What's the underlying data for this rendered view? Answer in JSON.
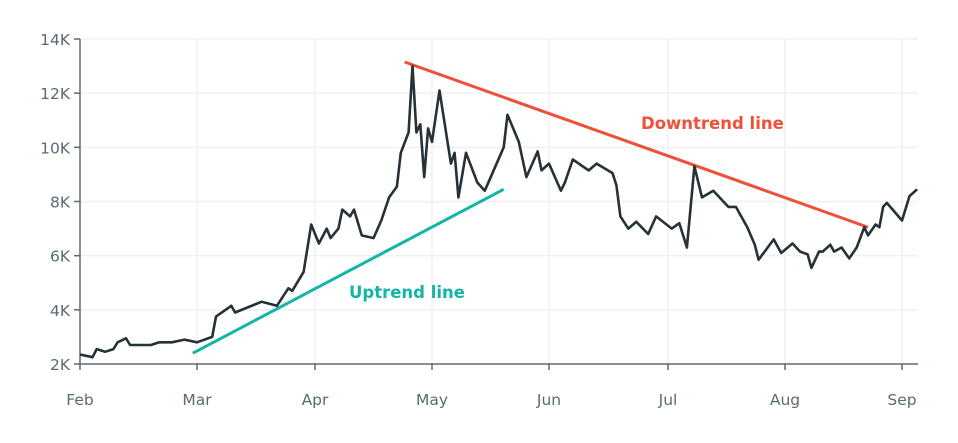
{
  "chart_data": {
    "type": "line",
    "title": "",
    "xlabel": "",
    "ylabel": "",
    "ylim": [
      2000,
      14000
    ],
    "y_ticks": [
      2000,
      4000,
      6000,
      8000,
      10000,
      12000,
      14000
    ],
    "y_tick_labels": [
      "2K",
      "4K",
      "6K",
      "8K",
      "10K",
      "12K",
      "14K"
    ],
    "x_tick_labels": [
      "Feb",
      "Mar",
      "Apr",
      "May",
      "Jun",
      "Jul",
      "Aug",
      "Sep"
    ],
    "x_ticks": [
      "02-01",
      "03-01",
      "04-01",
      "05-01",
      "06-01",
      "07-01",
      "08-01",
      "09-01"
    ],
    "grid": true,
    "colors": {
      "price": "#263238",
      "uptrend": "#14b5a7",
      "downtrend": "#f04f38",
      "axis": "#5b6a73",
      "grid": "#eef0f2"
    },
    "series": [
      {
        "x": [
          "02-01",
          "02-04",
          "02-05",
          "02-07",
          "02-09",
          "02-10",
          "02-12",
          "02-13",
          "02-18",
          "02-20",
          "02-23",
          "02-26",
          "03-01",
          "03-05",
          "03-06",
          "03-10",
          "03-11",
          "03-18",
          "03-22",
          "03-25",
          "03-26",
          "03-29",
          "03-31",
          "04-02",
          "04-04",
          "04-05",
          "04-07",
          "04-08",
          "04-10",
          "04-11",
          "04-13",
          "04-16",
          "04-18",
          "04-20",
          "04-22",
          "04-23",
          "04-25",
          "04-26",
          "04-27",
          "04-28",
          "04-29",
          "04-30",
          "05-01",
          "05-03",
          "05-06",
          "05-07",
          "05-08",
          "05-10",
          "05-13",
          "05-15",
          "05-20",
          "05-21",
          "05-24",
          "05-26",
          "05-29",
          "05-30",
          "06-01",
          "06-04",
          "06-05",
          "06-07",
          "06-11",
          "06-13",
          "06-17",
          "06-18",
          "06-19",
          "06-21",
          "06-23",
          "06-26",
          "06-28",
          "07-02",
          "07-04",
          "07-06",
          "07-08",
          "07-10",
          "07-13",
          "07-17",
          "07-19",
          "07-22",
          "07-24",
          "07-25",
          "07-29",
          "07-31",
          "08-03",
          "08-05",
          "08-07",
          "08-08",
          "08-10",
          "08-11",
          "08-13",
          "08-14",
          "08-16",
          "08-18",
          "08-20",
          "08-22",
          "08-23",
          "08-25",
          "08-26",
          "08-27",
          "08-28",
          "09-01",
          "09-03",
          "09-05"
        ],
        "values": [
          2350,
          2250,
          2550,
          2450,
          2550,
          2800,
          2950,
          2700,
          2700,
          2800,
          2800,
          2900,
          2800,
          3000,
          3750,
          4150,
          3900,
          4300,
          4150,
          4800,
          4700,
          5400,
          7150,
          6450,
          7000,
          6650,
          7000,
          7700,
          7450,
          7700,
          6750,
          6650,
          7300,
          8150,
          8550,
          9800,
          10550,
          13000,
          10550,
          10850,
          8900,
          10700,
          10200,
          12100,
          9400,
          9800,
          8150,
          9800,
          8700,
          8400,
          10000,
          11200,
          10200,
          8900,
          9850,
          9150,
          9400,
          8400,
          8700,
          9550,
          9150,
          9400,
          9050,
          8600,
          7450,
          7000,
          7250,
          6800,
          7450,
          7000,
          7200,
          6300,
          9300,
          8150,
          8400,
          7800,
          7800,
          7050,
          6400,
          5850,
          6600,
          6100,
          6450,
          6150,
          6050,
          5550,
          6150,
          6150,
          6400,
          6150,
          6300,
          5900,
          6300,
          7050,
          6750,
          7150,
          7050,
          7800,
          7950,
          7300,
          8200,
          8450
        ]
      }
    ],
    "trendlines": [
      {
        "label": "Uptrend line",
        "x": [
          "02-28",
          "05-20"
        ],
        "values": [
          2400,
          8450
        ]
      },
      {
        "label": "Downtrend line",
        "x": [
          "04-24",
          "08-23"
        ],
        "values": [
          13150,
          7050
        ]
      }
    ]
  }
}
